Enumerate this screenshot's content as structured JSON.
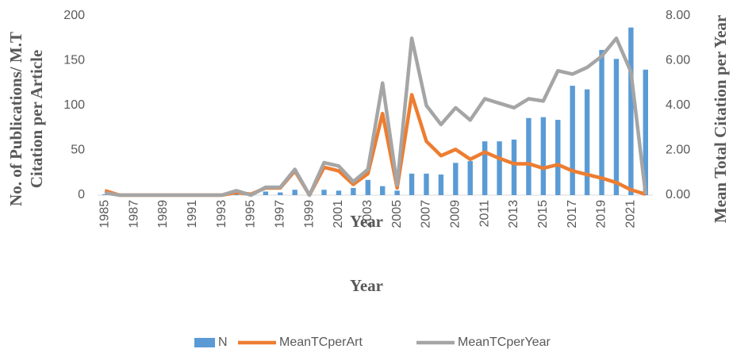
{
  "chart_data": {
    "type": "bar-line",
    "title": "Year",
    "x_label": "Year",
    "y_label": [
      "No. of Publications/ M.T",
      "Citation per Article"
    ],
    "y2_label": "Mean Total Citation per Year",
    "categories": [
      "1985",
      null,
      "1987",
      null,
      "1989",
      null,
      "1991",
      null,
      "1993",
      null,
      "1995",
      null,
      "1997",
      null,
      "1999",
      null,
      "2001",
      null,
      "2003",
      null,
      "2005",
      null,
      "2007",
      null,
      "2009",
      null,
      "2011",
      null,
      "2013",
      null,
      "2015",
      null,
      "2017",
      null,
      "2019",
      null,
      "2021",
      null
    ],
    "series": [
      {
        "name": "N",
        "type": "bar",
        "color": "#5b9bd5",
        "values": [
          1,
          0,
          0,
          0,
          0,
          0,
          0,
          0,
          0,
          1,
          1,
          4,
          3,
          6,
          1,
          6,
          5,
          8,
          17,
          10,
          5,
          24,
          24,
          23,
          36,
          38,
          60,
          60,
          62,
          86,
          87,
          84,
          122,
          118,
          162,
          152,
          187,
          140
        ]
      },
      {
        "name": "MeanTCperArt",
        "type": "line",
        "color": "#ed7d31",
        "values": [
          5,
          0,
          0,
          0,
          0,
          0,
          0,
          0,
          0,
          3,
          1,
          8,
          8,
          27,
          0,
          31,
          27,
          12,
          24,
          91,
          8,
          112,
          60,
          44,
          51,
          40,
          48,
          41,
          35,
          35,
          30,
          34,
          27,
          23,
          19,
          14,
          6,
          1
        ]
      },
      {
        "name": "MeanTCperYear",
        "type": "line",
        "axis": "y2",
        "color": "#a5a5a5",
        "values": [
          0.1,
          0,
          0,
          0,
          0,
          0,
          0,
          0,
          0,
          0.2,
          0,
          0.35,
          0.35,
          1.15,
          0,
          1.45,
          1.3,
          0.6,
          1.15,
          5.0,
          0.45,
          7.0,
          4.0,
          3.15,
          3.9,
          3.35,
          4.3,
          4.1,
          3.9,
          4.3,
          4.2,
          5.55,
          5.4,
          5.7,
          6.2,
          7.0,
          5.5,
          0.05
        ]
      }
    ],
    "ylim": [
      0,
      200
    ],
    "yticks": [
      0,
      50,
      100,
      150,
      200
    ],
    "y2lim": [
      0,
      8
    ],
    "y2ticks": [
      {
        "value": 0,
        "label": "0.00"
      },
      {
        "value": 2,
        "label": "2.00"
      },
      {
        "value": 4,
        "label": "4.00"
      },
      {
        "value": 6,
        "label": "6.00"
      },
      {
        "value": 8,
        "label": "8.00"
      }
    ],
    "legend": "bottom"
  }
}
